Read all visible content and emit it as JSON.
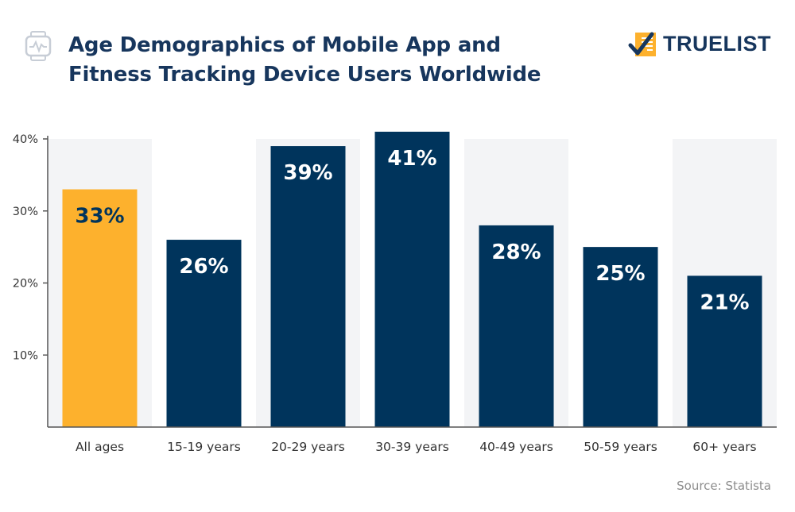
{
  "header": {
    "title_line1": "Age Demographics of Mobile App and",
    "title_line2": "Fitness Tracking Device Users Worldwide",
    "icon": "smartwatch-icon"
  },
  "logo": {
    "text": "TRUELIST",
    "icon": "checklist-icon"
  },
  "source": "Source: Statista",
  "colors": {
    "highlight": "#fdb12d",
    "bar": "#00345c",
    "band": "#f3f4f6",
    "axis": "#555555",
    "title": "#17365d"
  },
  "chart_data": {
    "type": "bar",
    "categories": [
      "All ages",
      "15-19 years",
      "20-29 years",
      "30-39 years",
      "40-49 years",
      "50-59 years",
      "60+ years"
    ],
    "values": [
      33,
      26,
      39,
      41,
      28,
      25,
      21
    ],
    "value_labels": [
      "33%",
      "26%",
      "39%",
      "41%",
      "28%",
      "25%",
      "21%"
    ],
    "highlight_index": 0,
    "ylim": [
      0,
      40
    ],
    "yticks": [
      10,
      20,
      30,
      40
    ],
    "ytick_labels": [
      "10%",
      "20%",
      "30%",
      "40%"
    ],
    "xlabel": "",
    "ylabel": "",
    "grid": false,
    "alternating_bands": true
  }
}
